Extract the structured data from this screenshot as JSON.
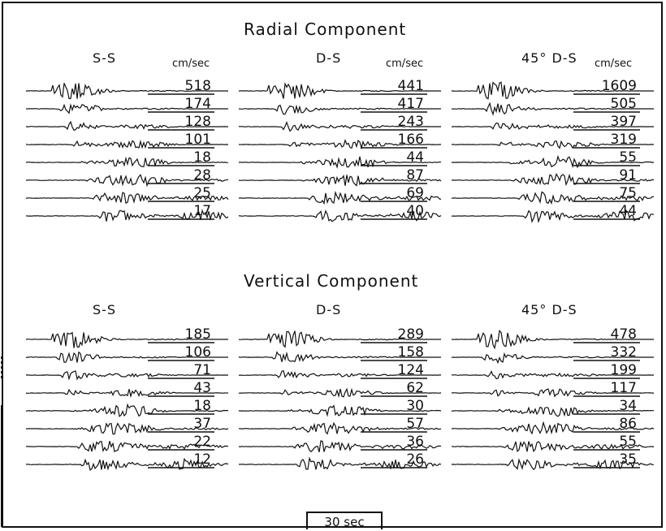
{
  "figure": {
    "radial": {
      "title": "Radial Component",
      "columns": [
        {
          "label": "S-S",
          "unit": "cm/sec",
          "amplitudes": [
            "518",
            "174",
            "128",
            "101",
            "18",
            "28",
            "25",
            "17"
          ]
        },
        {
          "label": "D-S",
          "unit": "cm/sec",
          "amplitudes": [
            "441",
            "417",
            "243",
            "166",
            "44",
            "87",
            "69",
            "40"
          ]
        },
        {
          "label": "45° D-S",
          "unit": "cm/sec",
          "amplitudes": [
            "1609",
            "505",
            "397",
            "319",
            "55",
            "91",
            "75",
            "44"
          ]
        }
      ]
    },
    "vertical": {
      "title": "Vertical Component",
      "columns": [
        {
          "label": "S-S",
          "amplitudes": [
            "185",
            "106",
            "71",
            "43",
            "18",
            "37",
            "22",
            "12"
          ]
        },
        {
          "label": "D-S",
          "amplitudes": [
            "289",
            "158",
            "124",
            "62",
            "30",
            "57",
            "36",
            "26"
          ]
        },
        {
          "label": "45° D-S",
          "amplitudes": [
            "478",
            "332",
            "199",
            "117",
            "34",
            "86",
            "55",
            "35"
          ]
        }
      ]
    },
    "scale": {
      "label": "30 sec"
    }
  }
}
